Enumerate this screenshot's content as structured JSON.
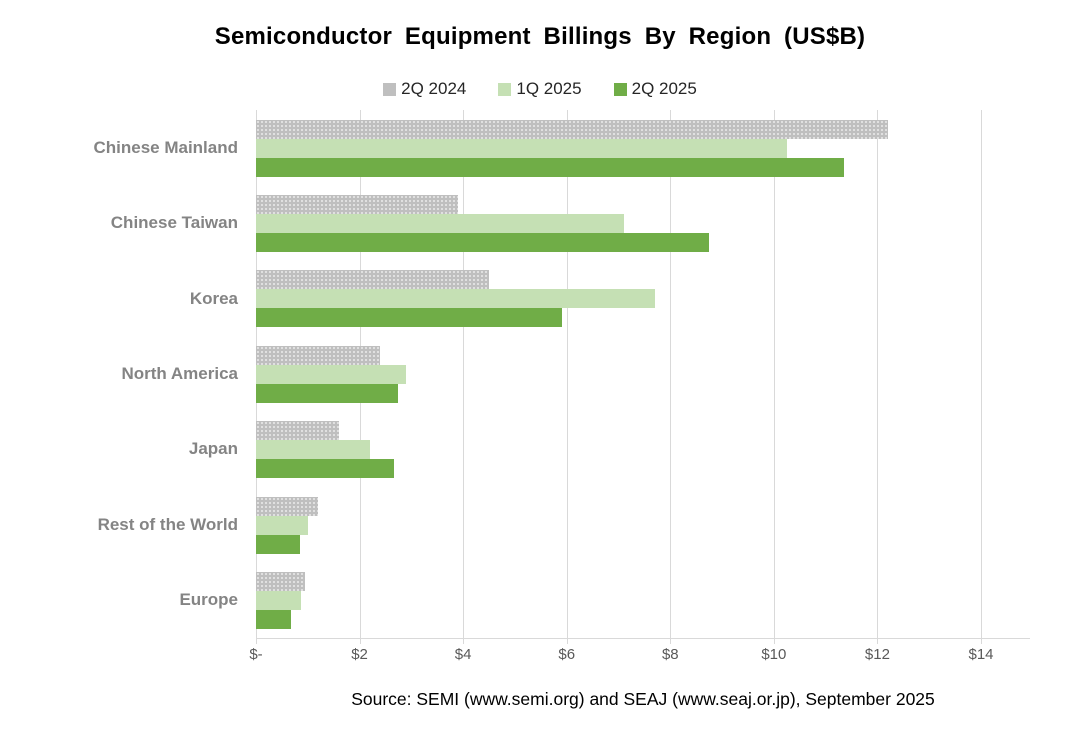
{
  "title": "Semiconductor Equipment Billings By Region (US$B)",
  "source": "Source: SEMI (www.semi.org)  and SEAJ (www.seaj.or.jp),  September 2025",
  "colors": {
    "series_gray": "#bfbfbf",
    "series_light_green": "#c5e0b4",
    "series_green": "#70ad47",
    "gridline": "#d9d9d9",
    "category_label": "#848484",
    "axis_label": "#595959"
  },
  "chart_data": {
    "type": "bar",
    "orientation": "horizontal",
    "title": "Semiconductor Equipment Billings By Region (US$B)",
    "categories": [
      "Chinese Mainland",
      "Chinese Taiwan",
      "Korea",
      "North America",
      "Japan",
      "Rest of the World",
      "Europe"
    ],
    "series": [
      {
        "name": "2Q 2024",
        "color": "#bfbfbf",
        "pattern": "dotted",
        "values": [
          12.2,
          3.9,
          4.5,
          2.4,
          1.6,
          1.2,
          0.95
        ]
      },
      {
        "name": "1Q 2025",
        "color": "#c5e0b4",
        "pattern": "solid",
        "values": [
          10.25,
          7.1,
          7.7,
          2.9,
          2.2,
          1.0,
          0.87
        ]
      },
      {
        "name": "2Q 2025",
        "color": "#70ad47",
        "pattern": "solid",
        "values": [
          11.35,
          8.75,
          5.9,
          2.75,
          2.67,
          0.85,
          0.67
        ]
      }
    ],
    "xlabel": "",
    "ylabel": "",
    "xlim": [
      0,
      14
    ],
    "x_tick_step": 2,
    "x_tick_labels": [
      "$-",
      "$2",
      "$4",
      "$6",
      "$8",
      "$10",
      "$12",
      "$14"
    ],
    "grid": "vertical-only",
    "legend_position": "top-center",
    "value_unit": "US$ billions"
  }
}
